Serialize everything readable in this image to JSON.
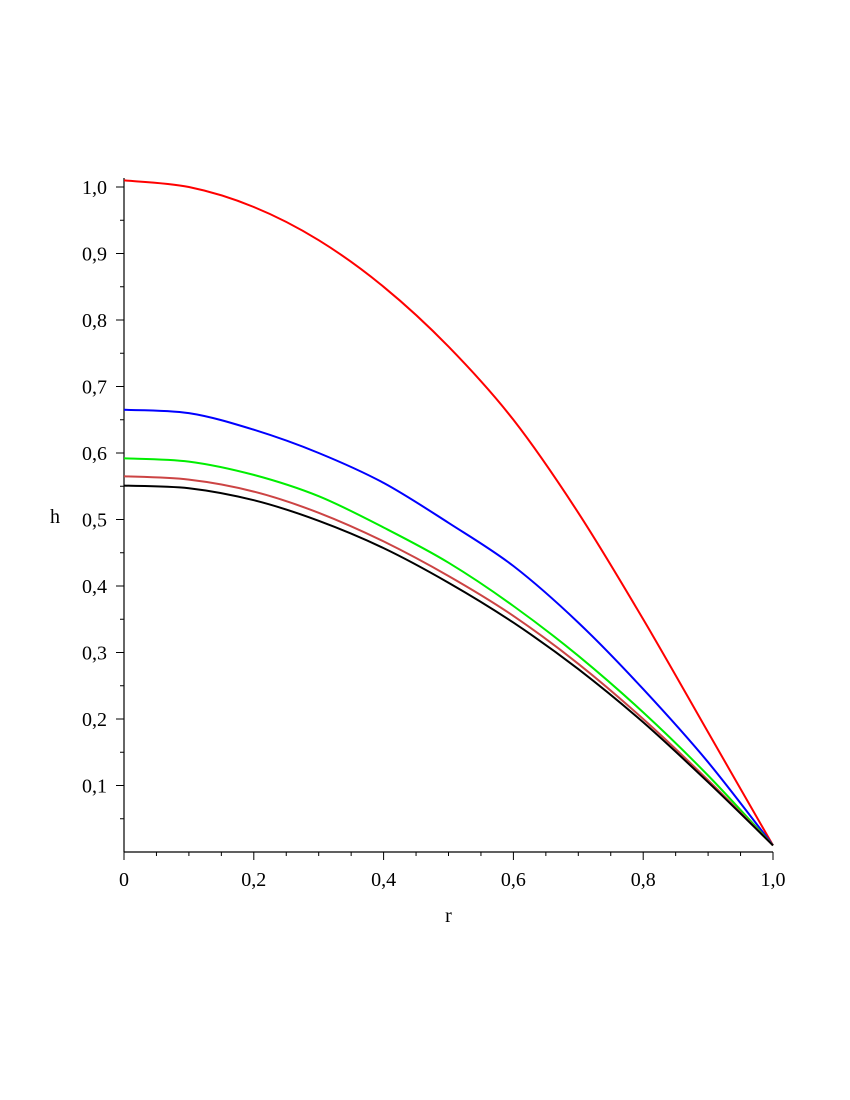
{
  "chart_data": {
    "type": "line",
    "title": "",
    "xlabel": "r",
    "ylabel": "h",
    "xlim": [
      0,
      1.0
    ],
    "ylim": [
      0,
      1.02
    ],
    "grid": false,
    "legend": "none",
    "x_ticks": [
      {
        "value": 0,
        "label": "0"
      },
      {
        "value": 0.2,
        "label": "0,2"
      },
      {
        "value": 0.4,
        "label": "0,4"
      },
      {
        "value": 0.6,
        "label": "0,6"
      },
      {
        "value": 0.8,
        "label": "0,8"
      },
      {
        "value": 1.0,
        "label": "1,0"
      }
    ],
    "y_ticks": [
      {
        "value": 0.1,
        "label": "0,1"
      },
      {
        "value": 0.2,
        "label": "0,2"
      },
      {
        "value": 0.3,
        "label": "0,3"
      },
      {
        "value": 0.4,
        "label": "0,4"
      },
      {
        "value": 0.5,
        "label": "0,5"
      },
      {
        "value": 0.6,
        "label": "0,6"
      },
      {
        "value": 0.7,
        "label": "0,7"
      },
      {
        "value": 0.8,
        "label": "0,8"
      },
      {
        "value": 0.9,
        "label": "0,9"
      },
      {
        "value": 1.0,
        "label": "1,0"
      }
    ],
    "x": [
      0,
      0.1,
      0.2,
      0.3,
      0.4,
      0.5,
      0.6,
      0.7,
      0.8,
      0.9,
      1.0
    ],
    "series": [
      {
        "color": "#ff0000",
        "values": [
          1.01,
          1.0,
          0.97,
          0.92,
          0.85,
          0.76,
          0.65,
          0.51,
          0.35,
          0.18,
          0.01
        ]
      },
      {
        "color": "#0000ff",
        "values": [
          0.665,
          0.66,
          0.635,
          0.6,
          0.555,
          0.495,
          0.43,
          0.345,
          0.245,
          0.135,
          0.01
        ]
      },
      {
        "color": "#00ee00",
        "values": [
          0.592,
          0.587,
          0.567,
          0.535,
          0.488,
          0.435,
          0.37,
          0.295,
          0.21,
          0.115,
          0.01
        ]
      },
      {
        "color": "#cc4444",
        "values": [
          0.565,
          0.56,
          0.542,
          0.51,
          0.467,
          0.415,
          0.355,
          0.283,
          0.2,
          0.108,
          0.01
        ]
      },
      {
        "color": "#000000",
        "values": [
          0.551,
          0.547,
          0.529,
          0.498,
          0.457,
          0.405,
          0.345,
          0.275,
          0.195,
          0.105,
          0.01
        ]
      }
    ]
  }
}
